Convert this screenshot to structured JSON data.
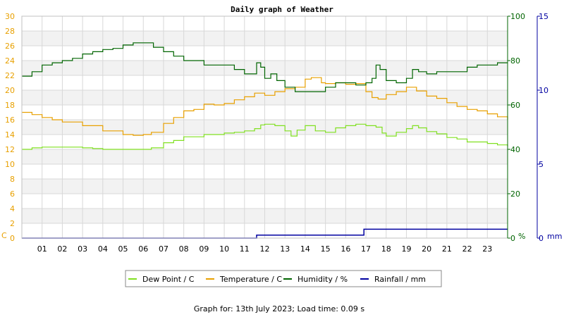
{
  "chart_data": {
    "type": "line",
    "title": "Daily graph of Weather",
    "footer": "Graph for: 13th July 2023; Load time: 0.09 s",
    "x_ticks": [
      "01",
      "02",
      "03",
      "04",
      "05",
      "06",
      "07",
      "08",
      "09",
      "10",
      "11",
      "12",
      "13",
      "14",
      "15",
      "16",
      "17",
      "18",
      "19",
      "20",
      "21",
      "22",
      "23"
    ],
    "x_range": [
      0,
      24
    ],
    "axes": {
      "left": {
        "unit": "C",
        "ticks": [
          "0",
          "2",
          "4",
          "6",
          "8",
          "10",
          "12",
          "14",
          "16",
          "18",
          "20",
          "22",
          "24",
          "26",
          "28",
          "30"
        ],
        "range": [
          0,
          30
        ],
        "color": "#e8a000"
      },
      "right": {
        "unit": "%",
        "ticks": [
          "0",
          "20",
          "40",
          "60",
          "80",
          "100"
        ],
        "range": [
          0,
          100
        ],
        "color": "#006400"
      },
      "rain": {
        "unit": "mm",
        "ticks": [
          "0",
          "5",
          "10",
          "15"
        ],
        "range": [
          0,
          15
        ],
        "color": "#0000a0"
      }
    },
    "grid": true,
    "legend_position": "bottom",
    "series": [
      {
        "name": "Dew Point / C",
        "color": "#80e020",
        "axis": "left",
        "points": [
          [
            0,
            12.0
          ],
          [
            0.5,
            12.2
          ],
          [
            1,
            12.3
          ],
          [
            2,
            12.3
          ],
          [
            3,
            12.2
          ],
          [
            3.5,
            12.1
          ],
          [
            4,
            12.0
          ],
          [
            5,
            12.0
          ],
          [
            6,
            12.0
          ],
          [
            6.4,
            12.2
          ],
          [
            7,
            12.9
          ],
          [
            7.5,
            13.2
          ],
          [
            8,
            13.7
          ],
          [
            9,
            14.0
          ],
          [
            10,
            14.2
          ],
          [
            10.5,
            14.3
          ],
          [
            11,
            14.5
          ],
          [
            11.5,
            14.8
          ],
          [
            11.8,
            15.3
          ],
          [
            12,
            15.4
          ],
          [
            12.5,
            15.2
          ],
          [
            13,
            14.5
          ],
          [
            13.3,
            13.8
          ],
          [
            13.6,
            14.6
          ],
          [
            14,
            15.2
          ],
          [
            14.5,
            14.5
          ],
          [
            15,
            14.3
          ],
          [
            15.5,
            14.9
          ],
          [
            16,
            15.2
          ],
          [
            16.5,
            15.4
          ],
          [
            17,
            15.2
          ],
          [
            17.5,
            15.0
          ],
          [
            17.8,
            14.2
          ],
          [
            18,
            13.8
          ],
          [
            18.5,
            14.3
          ],
          [
            19,
            14.8
          ],
          [
            19.3,
            15.2
          ],
          [
            19.6,
            14.9
          ],
          [
            20,
            14.4
          ],
          [
            20.5,
            14.1
          ],
          [
            21,
            13.6
          ],
          [
            21.5,
            13.4
          ],
          [
            22,
            13.0
          ],
          [
            23,
            12.8
          ],
          [
            23.5,
            12.6
          ],
          [
            24,
            12.4
          ]
        ]
      },
      {
        "name": "Temperature / C",
        "color": "#e8a000",
        "axis": "left",
        "points": [
          [
            0,
            17.0
          ],
          [
            0.5,
            16.7
          ],
          [
            1,
            16.3
          ],
          [
            1.5,
            16.0
          ],
          [
            2,
            15.7
          ],
          [
            3,
            15.2
          ],
          [
            4,
            14.5
          ],
          [
            5,
            14.0
          ],
          [
            5.5,
            13.9
          ],
          [
            6,
            14.0
          ],
          [
            6.4,
            14.3
          ],
          [
            7,
            15.5
          ],
          [
            7.5,
            16.3
          ],
          [
            8,
            17.2
          ],
          [
            8.5,
            17.4
          ],
          [
            9,
            18.1
          ],
          [
            9.5,
            18.0
          ],
          [
            10,
            18.2
          ],
          [
            10.5,
            18.7
          ],
          [
            11,
            19.1
          ],
          [
            11.5,
            19.6
          ],
          [
            12,
            19.3
          ],
          [
            12.5,
            19.8
          ],
          [
            13,
            20.2
          ],
          [
            13.5,
            20.4
          ],
          [
            14,
            21.5
          ],
          [
            14.3,
            21.7
          ],
          [
            14.8,
            21.0
          ],
          [
            15,
            20.9
          ],
          [
            15.5,
            21.0
          ],
          [
            16,
            20.8
          ],
          [
            16.5,
            20.9
          ],
          [
            17,
            19.8
          ],
          [
            17.3,
            19.0
          ],
          [
            17.6,
            18.8
          ],
          [
            18,
            19.4
          ],
          [
            18.5,
            19.8
          ],
          [
            19,
            20.4
          ],
          [
            19.5,
            19.9
          ],
          [
            20,
            19.2
          ],
          [
            20.5,
            18.9
          ],
          [
            21,
            18.3
          ],
          [
            21.5,
            17.8
          ],
          [
            22,
            17.4
          ],
          [
            22.5,
            17.2
          ],
          [
            23,
            16.8
          ],
          [
            23.5,
            16.4
          ],
          [
            24,
            16.0
          ]
        ]
      },
      {
        "name": "Humidity / %",
        "color": "#006400",
        "axis": "right",
        "points": [
          [
            0,
            73
          ],
          [
            0.5,
            75
          ],
          [
            1,
            78
          ],
          [
            1.5,
            79
          ],
          [
            2,
            80
          ],
          [
            2.5,
            81
          ],
          [
            3,
            83
          ],
          [
            3.5,
            84
          ],
          [
            4,
            85
          ],
          [
            4.5,
            85.5
          ],
          [
            5,
            87
          ],
          [
            5.5,
            88
          ],
          [
            6,
            88
          ],
          [
            6.5,
            86
          ],
          [
            7,
            84
          ],
          [
            7.5,
            82
          ],
          [
            8,
            80
          ],
          [
            9,
            78
          ],
          [
            9.5,
            78
          ],
          [
            10,
            78
          ],
          [
            10.5,
            76
          ],
          [
            11,
            74
          ],
          [
            11.3,
            74
          ],
          [
            11.6,
            79
          ],
          [
            11.8,
            77
          ],
          [
            12,
            72
          ],
          [
            12.3,
            74
          ],
          [
            12.6,
            71
          ],
          [
            13,
            68
          ],
          [
            13.5,
            66
          ],
          [
            14,
            66
          ],
          [
            14.5,
            66
          ],
          [
            15,
            68
          ],
          [
            15.5,
            70
          ],
          [
            16,
            70
          ],
          [
            16.5,
            69
          ],
          [
            17,
            70
          ],
          [
            17.3,
            72
          ],
          [
            17.5,
            78
          ],
          [
            17.7,
            76
          ],
          [
            18,
            71
          ],
          [
            18.5,
            70
          ],
          [
            19,
            72
          ],
          [
            19.3,
            76
          ],
          [
            19.6,
            75
          ],
          [
            20,
            74
          ],
          [
            20.5,
            75
          ],
          [
            21,
            75
          ],
          [
            21.5,
            75
          ],
          [
            22,
            77
          ],
          [
            22.5,
            78
          ],
          [
            23,
            78
          ],
          [
            23.5,
            79
          ],
          [
            24,
            79
          ]
        ]
      },
      {
        "name": "Rainfall / mm",
        "color": "#0000a0",
        "axis": "rain",
        "points": [
          [
            0,
            0
          ],
          [
            11.6,
            0
          ],
          [
            11.6,
            0.2
          ],
          [
            16.9,
            0.2
          ],
          [
            16.9,
            0.6
          ],
          [
            24,
            0.6
          ]
        ]
      }
    ]
  }
}
